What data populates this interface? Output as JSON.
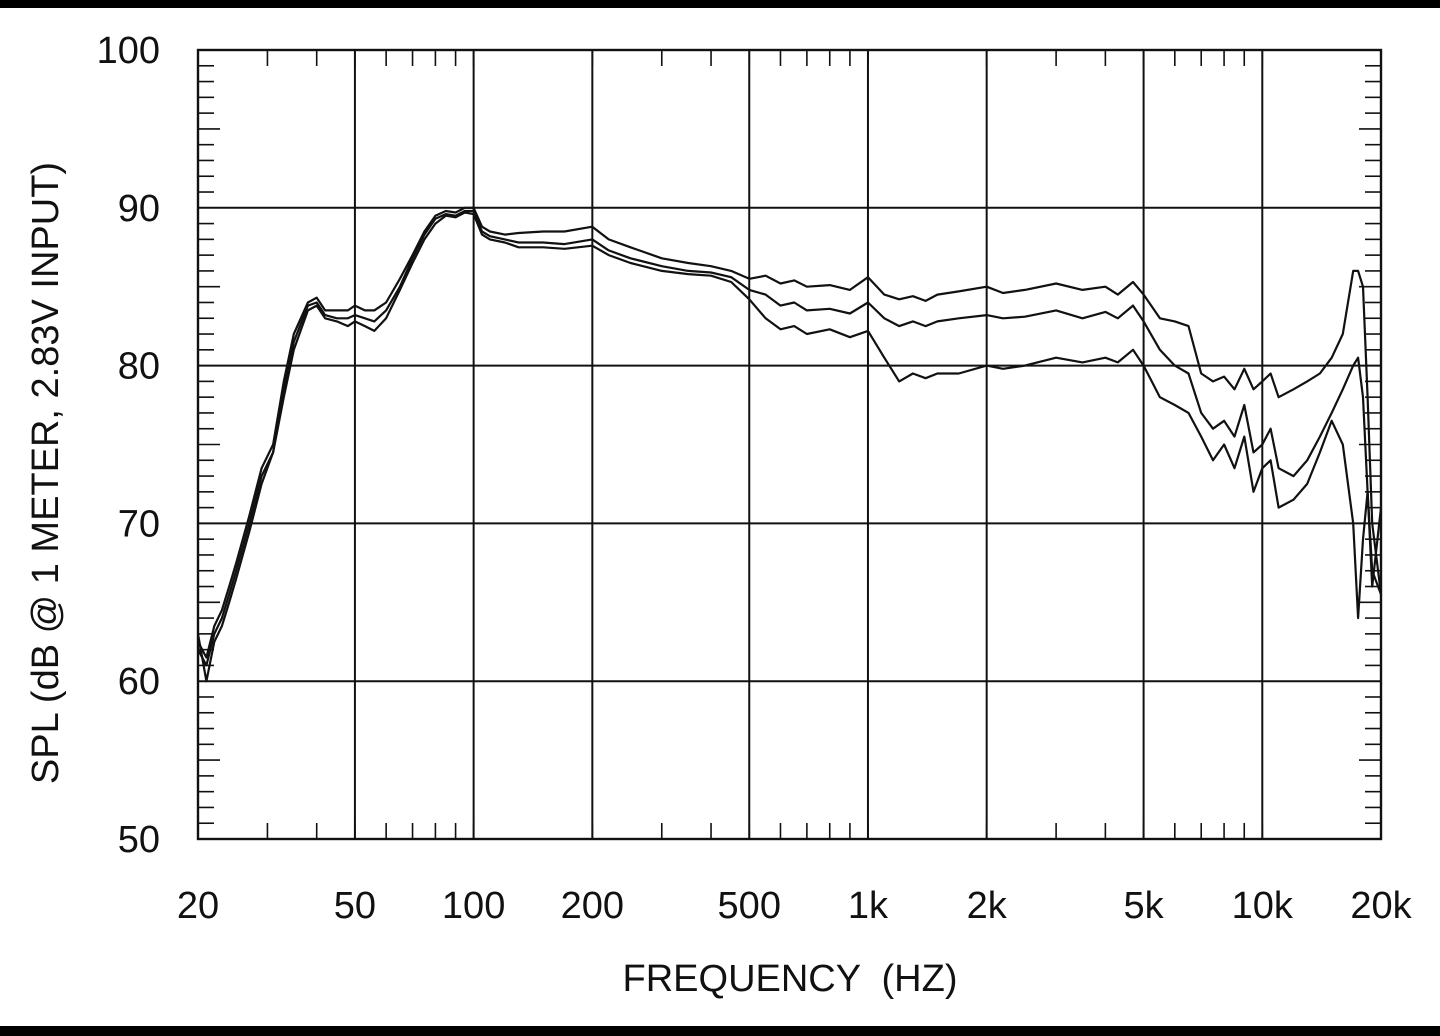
{
  "chart_data": {
    "type": "line",
    "xlabel": "FREQUENCY  (HZ)",
    "ylabel": "SPL (dB @ 1 METER, 2.83V INPUT)",
    "xscale": "log",
    "xlim": [
      20,
      20000
    ],
    "ylim": [
      50,
      100
    ],
    "grid": true,
    "xticks": [
      {
        "value": 20,
        "label": "20"
      },
      {
        "value": 50,
        "label": "50"
      },
      {
        "value": 100,
        "label": "100"
      },
      {
        "value": 200,
        "label": "200"
      },
      {
        "value": 500,
        "label": "500"
      },
      {
        "value": 1000,
        "label": "1k"
      },
      {
        "value": 2000,
        "label": "2k"
      },
      {
        "value": 5000,
        "label": "5k"
      },
      {
        "value": 10000,
        "label": "10k"
      },
      {
        "value": 20000,
        "label": "20k"
      }
    ],
    "yticks": [
      {
        "value": 50,
        "label": "50"
      },
      {
        "value": 60,
        "label": "60"
      },
      {
        "value": 70,
        "label": "70"
      },
      {
        "value": 80,
        "label": "80"
      },
      {
        "value": 90,
        "label": "90"
      },
      {
        "value": 100,
        "label": "100"
      }
    ],
    "series": [
      {
        "x": [
          20,
          21,
          22,
          23,
          24,
          25,
          27,
          29,
          31,
          33,
          35,
          38,
          40,
          42,
          45,
          48,
          50,
          53,
          56,
          60,
          65,
          70,
          75,
          80,
          85,
          90,
          95,
          100,
          105,
          110,
          120,
          130,
          150,
          170,
          200,
          220,
          250,
          300,
          350,
          400,
          450,
          500,
          550,
          600,
          650,
          700,
          800,
          900,
          1000,
          1100,
          1200,
          1300,
          1400,
          1500,
          1700,
          2000,
          2200,
          2500,
          3000,
          3500,
          4000,
          4300,
          4700,
          5000,
          5500,
          6000,
          6500,
          7000,
          7500,
          8000,
          8500,
          9000,
          9500,
          10000,
          10500,
          11000,
          12000,
          13000,
          14000,
          15000,
          16000,
          17000,
          17500,
          18000,
          18500,
          19000,
          20000
        ],
        "y": [
          62.5,
          61.5,
          63.5,
          64.5,
          66,
          67.5,
          70.5,
          73.5,
          75,
          79,
          82,
          84,
          84.3,
          83.5,
          83.5,
          83.5,
          83.8,
          83.5,
          83.5,
          84,
          85.5,
          87,
          88.5,
          89.5,
          89.8,
          89.7,
          90,
          90,
          88.8,
          88.5,
          88.3,
          88.4,
          88.5,
          88.5,
          88.8,
          88,
          87.5,
          86.8,
          86.5,
          86.3,
          86,
          85.5,
          85.7,
          85.2,
          85.4,
          85,
          85.1,
          84.8,
          85.6,
          84.5,
          84.2,
          84.4,
          84.1,
          84.5,
          84.7,
          85,
          84.6,
          84.8,
          85.2,
          84.8,
          85,
          84.5,
          85.3,
          84.5,
          83,
          82.8,
          82.5,
          79.5,
          79,
          79.3,
          78.5,
          79.8,
          78.5,
          79,
          79.5,
          78,
          78.5,
          79,
          79.5,
          80.5,
          82,
          86,
          86,
          85,
          78,
          70,
          65.5
        ]
      },
      {
        "x": [
          20,
          21,
          22,
          23,
          24,
          25,
          27,
          29,
          31,
          33,
          35,
          38,
          40,
          42,
          45,
          48,
          50,
          53,
          56,
          60,
          65,
          70,
          75,
          80,
          85,
          90,
          95,
          100,
          105,
          110,
          120,
          130,
          150,
          170,
          200,
          220,
          250,
          300,
          350,
          400,
          450,
          500,
          550,
          600,
          650,
          700,
          800,
          900,
          1000,
          1100,
          1200,
          1300,
          1400,
          1500,
          1700,
          2000,
          2200,
          2500,
          3000,
          3500,
          4000,
          4300,
          4700,
          5000,
          5500,
          6000,
          6500,
          7000,
          7500,
          8000,
          8500,
          9000,
          9500,
          10000,
          10500,
          11000,
          12000,
          13000,
          14000,
          15000,
          16000,
          17000,
          17500,
          18000,
          18500,
          19000,
          20000
        ],
        "y": [
          62,
          61,
          63,
          64,
          65.5,
          67,
          70,
          73,
          74.5,
          78.5,
          81.5,
          83.8,
          84,
          83.2,
          83,
          83,
          83.2,
          83,
          82.8,
          83.5,
          85,
          86.8,
          88.3,
          89.3,
          89.6,
          89.5,
          89.8,
          89.8,
          88.5,
          88.2,
          88,
          87.8,
          87.8,
          87.7,
          88,
          87.3,
          86.8,
          86.3,
          86,
          85.9,
          85.6,
          84.8,
          84.5,
          83.8,
          84,
          83.5,
          83.6,
          83.3,
          84,
          83,
          82.5,
          82.8,
          82.5,
          82.8,
          83,
          83.2,
          83,
          83.1,
          83.5,
          83,
          83.4,
          83,
          83.8,
          82.8,
          81,
          80,
          79.5,
          77,
          76,
          76.5,
          75.5,
          77.5,
          74.5,
          75,
          76,
          73.5,
          73,
          74,
          75.5,
          77,
          78.5,
          80,
          80.5,
          78,
          72,
          67,
          65.5
        ]
      },
      {
        "x": [
          20,
          21,
          22,
          23,
          24,
          25,
          27,
          29,
          31,
          33,
          35,
          38,
          40,
          42,
          45,
          48,
          50,
          53,
          56,
          60,
          65,
          70,
          75,
          80,
          85,
          90,
          95,
          100,
          105,
          110,
          120,
          130,
          150,
          170,
          200,
          220,
          250,
          300,
          350,
          400,
          450,
          500,
          550,
          600,
          650,
          700,
          800,
          900,
          1000,
          1100,
          1200,
          1300,
          1400,
          1500,
          1700,
          2000,
          2200,
          2500,
          3000,
          3500,
          4000,
          4300,
          4700,
          5000,
          5500,
          6000,
          6500,
          7000,
          7500,
          8000,
          8500,
          9000,
          9500,
          10000,
          10500,
          11000,
          12000,
          13000,
          14000,
          15000,
          16000,
          17000,
          17500,
          18000,
          18500,
          19000,
          20000
        ],
        "y": [
          63,
          60,
          62.5,
          63.5,
          65,
          66.5,
          69.5,
          72.5,
          74.5,
          78,
          81,
          83.5,
          83.8,
          83,
          82.8,
          82.5,
          82.8,
          82.5,
          82.2,
          83,
          84.8,
          86.5,
          88,
          89,
          89.5,
          89.4,
          89.7,
          89.6,
          88.3,
          88,
          87.8,
          87.5,
          87.5,
          87.4,
          87.6,
          87,
          86.5,
          86,
          85.8,
          85.7,
          85.3,
          84.2,
          83,
          82.3,
          82.5,
          82,
          82.3,
          81.8,
          82.2,
          80.5,
          79,
          79.5,
          79.2,
          79.5,
          79.5,
          80,
          79.8,
          80,
          80.5,
          80.2,
          80.5,
          80.2,
          81,
          80,
          78,
          77.5,
          77,
          75.5,
          74,
          75,
          73.5,
          75.5,
          72,
          73.5,
          74,
          71,
          71.5,
          72.5,
          74.5,
          76.5,
          75,
          70,
          64,
          69,
          72,
          66,
          71
        ]
      }
    ]
  }
}
